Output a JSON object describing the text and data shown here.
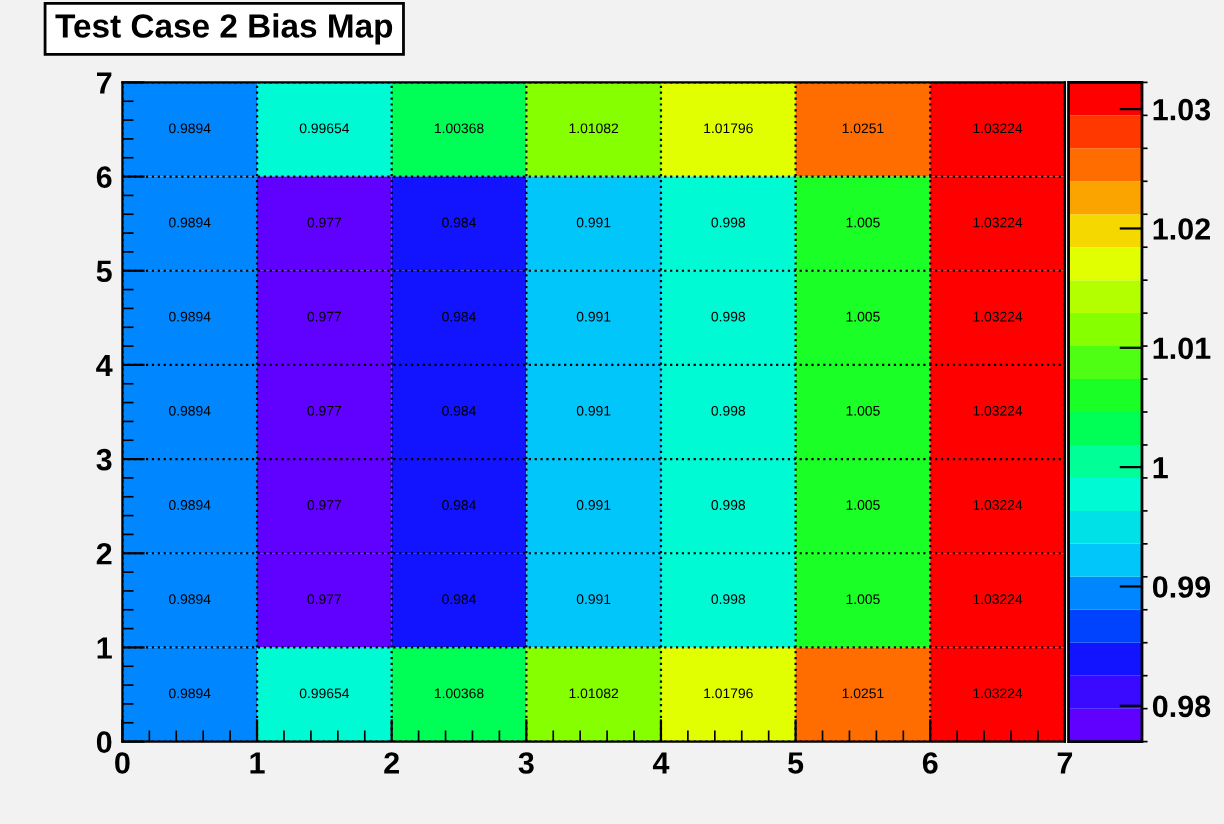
{
  "chart_data": {
    "type": "heatmap",
    "title": "Test Case 2 Bias Map",
    "xlim": [
      0,
      7
    ],
    "xticks": [
      0,
      1,
      2,
      3,
      4,
      5,
      6,
      7
    ],
    "ylim": [
      0,
      7
    ],
    "yticks": [
      0,
      1,
      2,
      3,
      4,
      5,
      6,
      7
    ],
    "cells": [
      [
        0.9894,
        0.99654,
        1.00368,
        1.01082,
        1.01796,
        1.0251,
        1.03224
      ],
      [
        0.9894,
        0.977,
        0.984,
        0.991,
        0.998,
        1.005,
        1.03224
      ],
      [
        0.9894,
        0.977,
        0.984,
        0.991,
        0.998,
        1.005,
        1.03224
      ],
      [
        0.9894,
        0.977,
        0.984,
        0.991,
        0.998,
        1.005,
        1.03224
      ],
      [
        0.9894,
        0.977,
        0.984,
        0.991,
        0.998,
        1.005,
        1.03224
      ],
      [
        0.9894,
        0.977,
        0.984,
        0.991,
        0.998,
        1.005,
        1.03224
      ],
      [
        0.9894,
        0.99654,
        1.00368,
        1.01082,
        1.01796,
        1.0251,
        1.03224
      ]
    ],
    "clim": [
      0.977,
      1.03224
    ],
    "cticks": [
      0.98,
      0.99,
      1,
      1.01,
      1.02,
      1.03
    ],
    "data_labels": true,
    "grid": true
  }
}
